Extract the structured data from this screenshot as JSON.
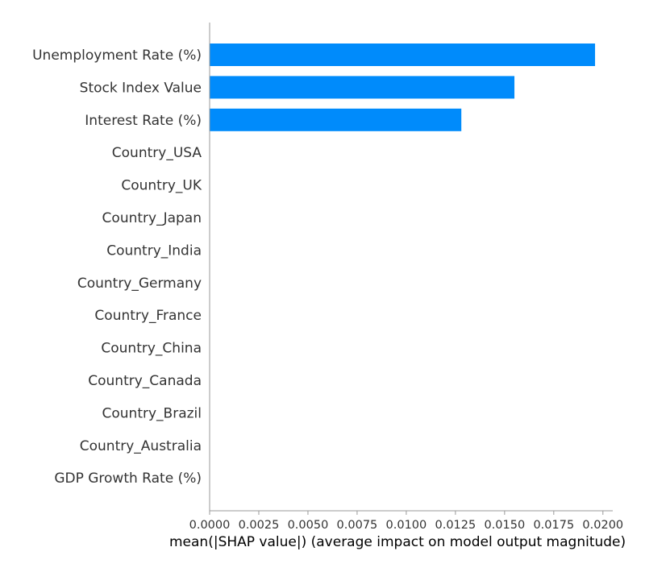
{
  "chart_data": {
    "type": "bar",
    "orientation": "horizontal",
    "categories": [
      "Unemployment Rate (%)",
      "Stock Index Value",
      "Interest Rate (%)",
      "Country_USA",
      "Country_UK",
      "Country_Japan",
      "Country_India",
      "Country_Germany",
      "Country_France",
      "Country_China",
      "Country_Canada",
      "Country_Brazil",
      "Country_Australia",
      "GDP Growth Rate (%)"
    ],
    "values": [
      0.0196,
      0.0155,
      0.0128,
      0,
      0,
      0,
      0,
      0,
      0,
      0,
      0,
      0,
      0,
      0
    ],
    "xlabel": "mean(|SHAP value|) (average impact on model output magnitude)",
    "xlim": [
      0,
      0.0205
    ],
    "xticks": [
      0.0,
      0.0025,
      0.005,
      0.0075,
      0.01,
      0.0125,
      0.015,
      0.0175,
      0.02
    ],
    "xtick_labels": [
      "0.0000",
      "0.0025",
      "0.0050",
      "0.0075",
      "0.0100",
      "0.0125",
      "0.0150",
      "0.0175",
      "0.0200"
    ],
    "bar_color": "#008bfb",
    "axis_color": "#999999",
    "grid": false
  }
}
